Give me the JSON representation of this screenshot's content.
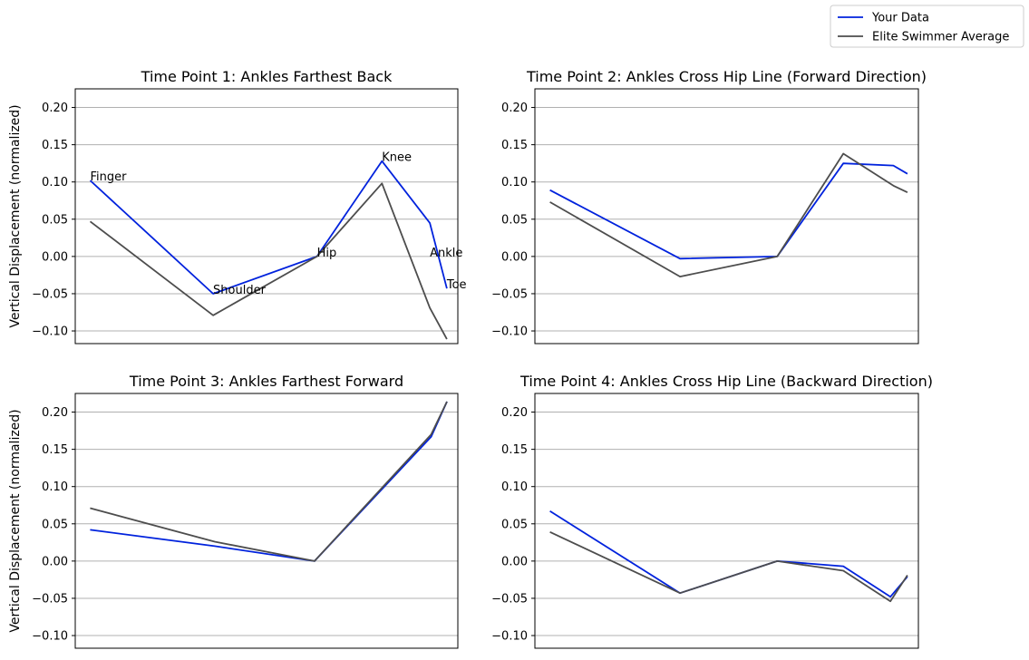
{
  "legend": {
    "placement": "top-right",
    "entries": [
      {
        "label": "Your Data",
        "color": "#0022dd"
      },
      {
        "label": "Elite Swimmer Average",
        "color": "#4d4d4d"
      }
    ]
  },
  "chart_data": [
    {
      "type": "line",
      "title": "Time Point 1: Ankles Farthest Back",
      "ylabel": "Vertical Displacement (normalized)",
      "ylim": [
        -0.117,
        0.225
      ],
      "yticks": [
        -0.1,
        -0.05,
        0.0,
        0.05,
        0.1,
        0.15,
        0.2
      ],
      "grid": "y",
      "x": [
        -2.27,
        -1.04,
        0,
        0.65,
        1.13,
        1.3
      ],
      "series": [
        {
          "name": "Your Data",
          "values": [
            0.102,
            -0.05,
            0.0,
            0.128,
            0.045,
            -0.043
          ]
        },
        {
          "name": "Elite Swimmer Average",
          "values": [
            0.047,
            -0.079,
            0.0,
            0.098,
            -0.069,
            -0.111
          ]
        }
      ],
      "annotations": [
        {
          "text": "Finger",
          "x": -2.27,
          "y": 0.102
        },
        {
          "text": "Shoulder",
          "x": -1.04,
          "y": -0.05
        },
        {
          "text": "Hip",
          "x": 0.0,
          "y": 0.0
        },
        {
          "text": "Knee",
          "x": 0.65,
          "y": 0.128
        },
        {
          "text": "Ankle",
          "x": 1.13,
          "y": 0.0
        },
        {
          "text": "Toe",
          "x": 1.3,
          "y": -0.043
        }
      ]
    },
    {
      "type": "line",
      "title": "Time Point 2: Ankles Cross Hip Line (Forward Direction)",
      "ylabel": "",
      "ylim": [
        -0.117,
        0.225
      ],
      "yticks": [
        -0.1,
        -0.05,
        0.0,
        0.05,
        0.1,
        0.15,
        0.2
      ],
      "grid": "y",
      "x": [
        -2.27,
        -0.97,
        0,
        0.66,
        1.16,
        1.3
      ],
      "series": [
        {
          "name": "Your Data",
          "values": [
            0.089,
            -0.003,
            0.0,
            0.125,
            0.122,
            0.111
          ]
        },
        {
          "name": "Elite Swimmer Average",
          "values": [
            0.073,
            -0.027,
            0.0,
            0.138,
            0.095,
            0.086
          ]
        }
      ],
      "annotations": []
    },
    {
      "type": "line",
      "title": "Time Point 3: Ankles Farthest Forward",
      "ylabel": "Vertical Displacement (normalized)",
      "ylim": [
        -0.117,
        0.225
      ],
      "yticks": [
        -0.1,
        -0.05,
        0.0,
        0.05,
        0.1,
        0.15,
        0.2
      ],
      "grid": "y",
      "x": [
        -2.27,
        -1.01,
        0,
        1.18,
        1.34
      ],
      "series": [
        {
          "name": "Your Data",
          "values": [
            0.042,
            0.02,
            0.0,
            0.167,
            0.214
          ]
        },
        {
          "name": "Elite Swimmer Average",
          "values": [
            0.071,
            0.026,
            0.0,
            0.17,
            0.214
          ]
        }
      ],
      "annotations": []
    },
    {
      "type": "line",
      "title": "Time Point 4: Ankles Cross Hip Line (Backward Direction)",
      "ylabel": "",
      "ylim": [
        -0.117,
        0.225
      ],
      "yticks": [
        -0.1,
        -0.05,
        0.0,
        0.05,
        0.1,
        0.15,
        0.2
      ],
      "grid": "y",
      "x": [
        -2.27,
        -0.97,
        0,
        0.66,
        1.13,
        1.3
      ],
      "series": [
        {
          "name": "Your Data",
          "values": [
            0.067,
            -0.043,
            0.0,
            -0.007,
            -0.048,
            -0.021
          ]
        },
        {
          "name": "Elite Swimmer Average",
          "values": [
            0.039,
            -0.043,
            0.0,
            -0.013,
            -0.054,
            -0.019
          ]
        }
      ],
      "annotations": []
    }
  ]
}
